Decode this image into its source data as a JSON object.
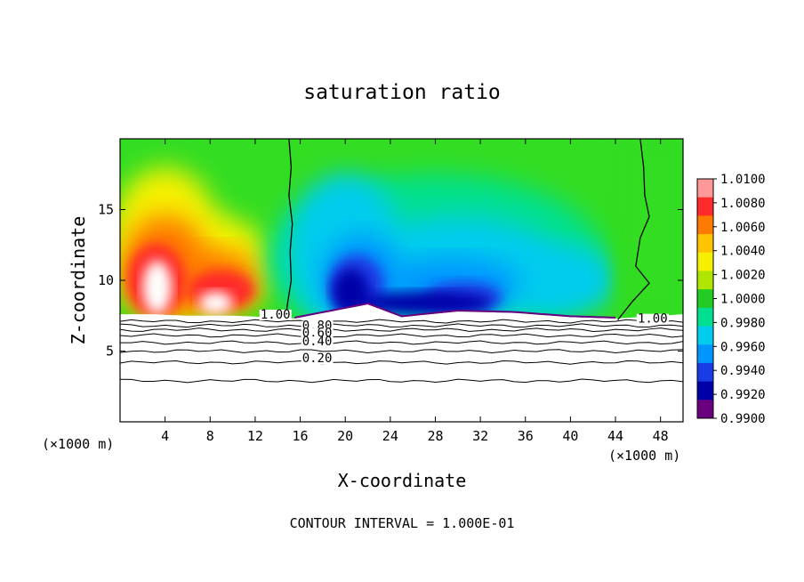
{
  "chart_data": {
    "type": "heatmap",
    "title": "saturation ratio",
    "xlabel": "X-coordinate",
    "ylabel": "Z-coordinate",
    "x_unit_label_left": "(×1000 m)",
    "x_unit_label_right": "(×1000 m)",
    "footer": "CONTOUR INTERVAL = 1.000E-01",
    "xlim": [
      0,
      50
    ],
    "ylim": [
      0,
      20
    ],
    "x_ticks": [
      4,
      8,
      12,
      16,
      20,
      24,
      28,
      32,
      36,
      40,
      44,
      48
    ],
    "y_ticks": [
      5,
      10,
      15
    ],
    "colorbar": {
      "min": 0.99,
      "max": 1.01,
      "labels": [
        "1.0100",
        "1.0080",
        "1.0060",
        "1.0040",
        "1.0020",
        "1.0000",
        "0.9980",
        "0.9960",
        "0.9940",
        "0.9920",
        "0.9900"
      ],
      "colors": [
        "#ff9999",
        "#ff2a2a",
        "#ff7a00",
        "#ffc400",
        "#f6f000",
        "#aee600",
        "#22cc22",
        "#00e090",
        "#00ccee",
        "#0096ff",
        "#1a3ce6",
        "#0000a8",
        "#6a0080"
      ]
    },
    "contour_labels": [
      {
        "text": "1.00",
        "x": 13.8,
        "z": 7.3
      },
      {
        "text": "1.00",
        "x": 47.3,
        "z": 7.0
      },
      {
        "text": "0.80",
        "x": 17.5,
        "z": 6.5
      },
      {
        "text": "0.60",
        "x": 17.5,
        "z": 6.0
      },
      {
        "text": "0.40",
        "x": 17.5,
        "z": 5.4
      },
      {
        "text": "0.20",
        "x": 17.5,
        "z": 4.2
      }
    ],
    "contour_levels_z": [
      7.1,
      6.8,
      6.5,
      6.1,
      5.6,
      5.0,
      4.2,
      2.9
    ],
    "saturation_boundary": [
      [
        0,
        7.6
      ],
      [
        3,
        7.6
      ],
      [
        6,
        7.5
      ],
      [
        10,
        7.5
      ],
      [
        13,
        7.4
      ],
      [
        15.5,
        7.3
      ],
      [
        22,
        8.3
      ],
      [
        25,
        7.4
      ],
      [
        30,
        7.8
      ],
      [
        35,
        7.7
      ],
      [
        40,
        7.4
      ],
      [
        44,
        7.3
      ],
      [
        50,
        7.6
      ]
    ]
  }
}
